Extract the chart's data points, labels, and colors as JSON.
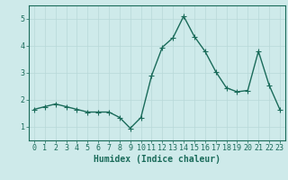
{
  "x": [
    0,
    1,
    2,
    3,
    4,
    5,
    6,
    7,
    8,
    9,
    10,
    11,
    12,
    13,
    14,
    15,
    16,
    17,
    18,
    19,
    20,
    21,
    22,
    23
  ],
  "y": [
    1.65,
    1.75,
    1.85,
    1.75,
    1.65,
    1.55,
    1.55,
    1.55,
    1.35,
    0.95,
    1.35,
    2.9,
    3.95,
    4.3,
    5.1,
    4.35,
    3.8,
    3.05,
    2.45,
    2.3,
    2.35,
    3.8,
    2.55,
    1.65
  ],
  "line_color": "#1a6b5a",
  "marker": "+",
  "markersize": 4,
  "linewidth": 1.0,
  "xlabel": "Humidex (Indice chaleur)",
  "ylim": [
    0.5,
    5.5
  ],
  "xlim": [
    -0.5,
    23.5
  ],
  "yticks": [
    1,
    2,
    3,
    4,
    5
  ],
  "xticks": [
    0,
    1,
    2,
    3,
    4,
    5,
    6,
    7,
    8,
    9,
    10,
    11,
    12,
    13,
    14,
    15,
    16,
    17,
    18,
    19,
    20,
    21,
    22,
    23
  ],
  "bg_color": "#ceeaea",
  "grid_color": "#b8d8d8",
  "tick_fontsize": 6,
  "xlabel_fontsize": 7,
  "spine_color": "#1a6b5a",
  "tick_color": "#1a6b5a"
}
